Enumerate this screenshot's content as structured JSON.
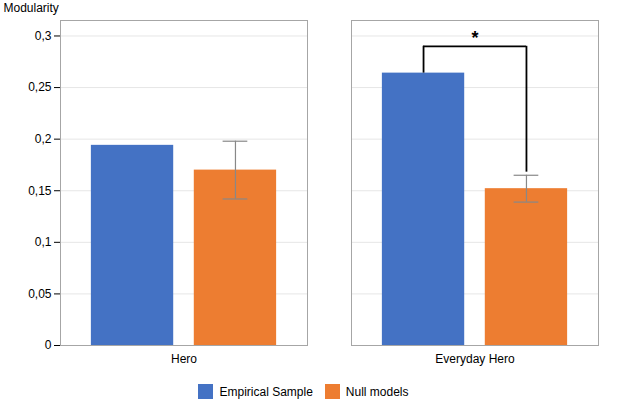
{
  "chart_data": {
    "type": "bar",
    "categories": [
      "Hero",
      "Everyday Hero"
    ],
    "series": [
      {
        "name": "Empirical Sample",
        "color": "#4472C4",
        "values": [
          0.194,
          0.264
        ]
      },
      {
        "name": "Null models",
        "color": "#ED7D31",
        "values": [
          0.17,
          0.152
        ],
        "errors": [
          0.028,
          0.013
        ]
      }
    ],
    "ylabel": "Modularity",
    "ylim": [
      0,
      0.315
    ],
    "yticks": [
      0,
      {
        "value": 0.05,
        "label": "0,05"
      },
      {
        "value": 0.1,
        "label": "0,1"
      },
      {
        "value": 0.15,
        "label": "0,15"
      },
      {
        "value": 0.2,
        "label": "0,2"
      },
      {
        "value": 0.25,
        "label": "0,25"
      },
      {
        "value": 0.3,
        "label": "0,3"
      }
    ],
    "grid": true,
    "legend": "bottom",
    "annotations": [
      {
        "text": "*",
        "category": "Everyday Hero",
        "y": 0.29,
        "y_end": 0.168
      }
    ]
  }
}
